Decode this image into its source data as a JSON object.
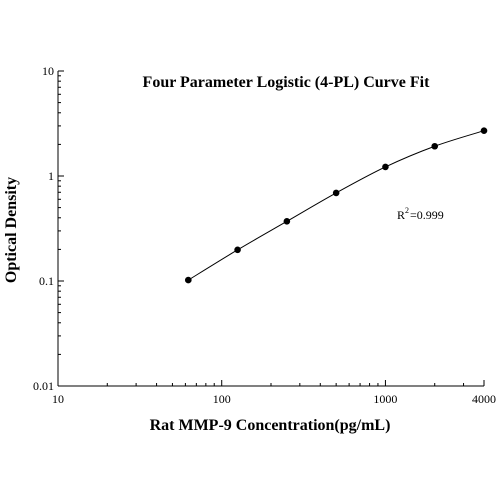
{
  "chart_data": {
    "type": "scatter",
    "title": "Four Parameter Logistic (4-PL) Curve Fit",
    "xlabel": "Rat MMP-9 Concentration(pg/mL)",
    "ylabel": "Optical Density",
    "xscale": "log",
    "yscale": "log",
    "xlim": [
      10,
      4000
    ],
    "ylim": [
      0.01,
      10
    ],
    "x_ticks": [
      10,
      100,
      1000,
      4000
    ],
    "x_tick_labels": [
      "10",
      "100",
      "1000",
      "4000"
    ],
    "y_ticks": [
      0.01,
      0.1,
      1,
      10
    ],
    "y_tick_labels": [
      "0.01",
      "0.1",
      "1",
      "10"
    ],
    "grid": false,
    "series": [
      {
        "x": [
          62.5,
          125,
          250,
          500,
          1000,
          2000,
          4000
        ],
        "y": [
          0.102,
          0.198,
          0.37,
          0.69,
          1.22,
          1.92,
          2.7
        ],
        "marker_color": "#000000"
      }
    ],
    "fit_curve": {
      "type": "4-PL",
      "line_color": "#000000"
    },
    "annotation": {
      "r_base": "R",
      "r_superscript": "2",
      "r_value": "=0.999"
    }
  }
}
